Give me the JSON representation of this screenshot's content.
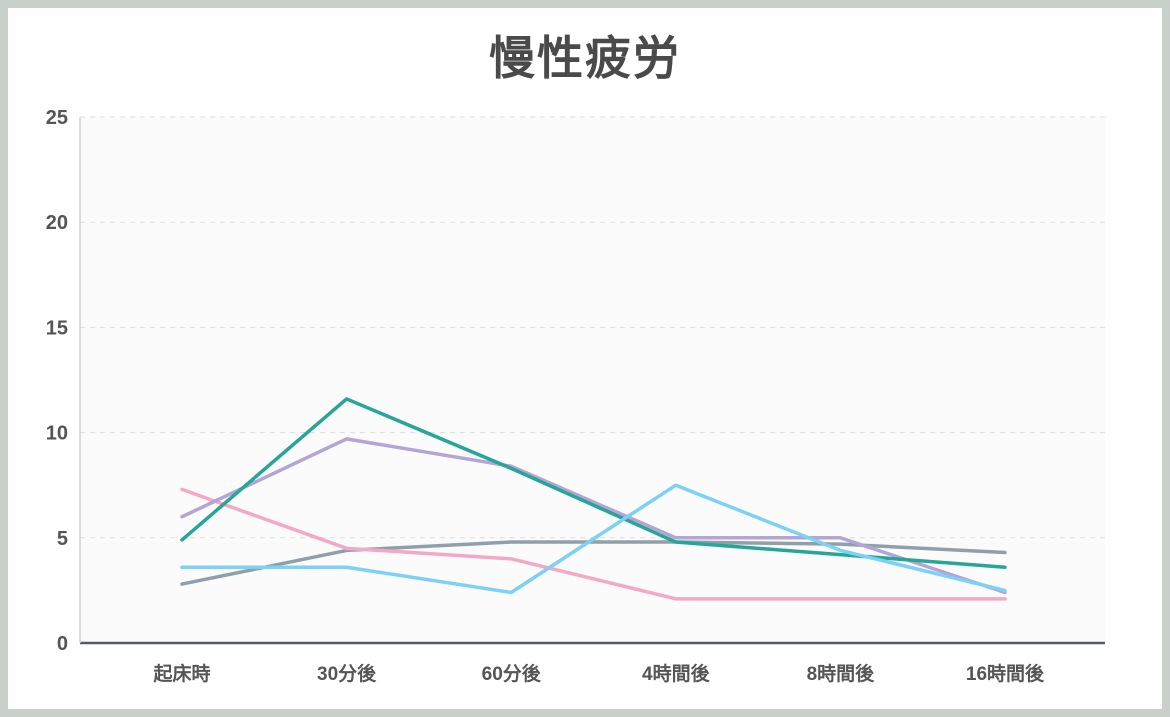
{
  "chart_data": {
    "type": "line",
    "title": "慢性疲労",
    "categories": [
      "起床時",
      "30分後",
      "60分後",
      "4時間後",
      "8時間後",
      "16時間後"
    ],
    "series": [
      {
        "name": "gray",
        "color": "#8fa0ab",
        "values": [
          2.8,
          4.4,
          4.8,
          4.8,
          4.7,
          4.3
        ]
      },
      {
        "name": "pink",
        "color": "#f5a8c5",
        "values": [
          7.3,
          4.5,
          4.0,
          2.1,
          2.1,
          2.1
        ]
      },
      {
        "name": "purple",
        "color": "#b3a5d6",
        "values": [
          6.0,
          9.7,
          8.4,
          5.0,
          5.0,
          2.4
        ]
      },
      {
        "name": "teal",
        "color": "#27a598",
        "values": [
          4.9,
          11.6,
          8.3,
          4.8,
          4.2,
          3.6
        ]
      },
      {
        "name": "blue",
        "color": "#7dd0f6",
        "values": [
          3.6,
          3.6,
          2.4,
          7.5,
          4.4,
          2.5
        ]
      }
    ],
    "xlabel": "",
    "ylabel": "",
    "ylim": [
      0,
      25
    ],
    "yticks": [
      0,
      5,
      10,
      15,
      20,
      25
    ],
    "grid": "dashed-horizontal",
    "legend": "none",
    "colors": {
      "axis": "#4e5d68",
      "grid": "#dcdcdc",
      "y_axis_line": "#cdd2d6",
      "text": "#555555",
      "title_text": "#4a4a4a",
      "frame": "#c9cfc9",
      "plot_bg": "#fbfbfb"
    }
  }
}
